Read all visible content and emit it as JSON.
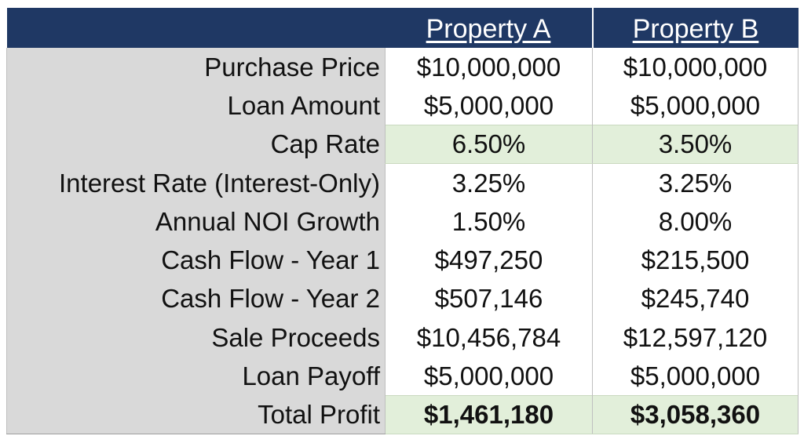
{
  "header": {
    "col_a": "Property A",
    "col_b": "Property B"
  },
  "rows": [
    {
      "label": "Purchase Price",
      "a": "$10,000,000",
      "b": "$10,000,000",
      "highlight": false,
      "bold": false
    },
    {
      "label": "Loan Amount",
      "a": "$5,000,000",
      "b": "$5,000,000",
      "highlight": false,
      "bold": false
    },
    {
      "label": "Cap Rate",
      "a": "6.50%",
      "b": "3.50%",
      "highlight": true,
      "bold": false
    },
    {
      "label": "Interest Rate (Interest-Only)",
      "a": "3.25%",
      "b": "3.25%",
      "highlight": false,
      "bold": false
    },
    {
      "label": "Annual NOI Growth",
      "a": "1.50%",
      "b": "8.00%",
      "highlight": false,
      "bold": false
    },
    {
      "label": "Cash Flow - Year 1",
      "a": "$497,250",
      "b": "$215,500",
      "highlight": false,
      "bold": false
    },
    {
      "label": "Cash Flow - Year 2",
      "a": "$507,146",
      "b": "$245,740",
      "highlight": false,
      "bold": false
    },
    {
      "label": "Sale Proceeds",
      "a": "$10,456,784",
      "b": "$12,597,120",
      "highlight": false,
      "bold": false
    },
    {
      "label": "Loan Payoff",
      "a": "$5,000,000",
      "b": "$5,000,000",
      "highlight": false,
      "bold": false
    },
    {
      "label": "Total Profit",
      "a": "$1,461,180",
      "b": "$3,058,360",
      "highlight": true,
      "bold": true
    }
  ],
  "colors": {
    "header_bg": "#1f3864",
    "label_bg": "#d9d9d9",
    "highlight_bg": "#e2efda"
  }
}
